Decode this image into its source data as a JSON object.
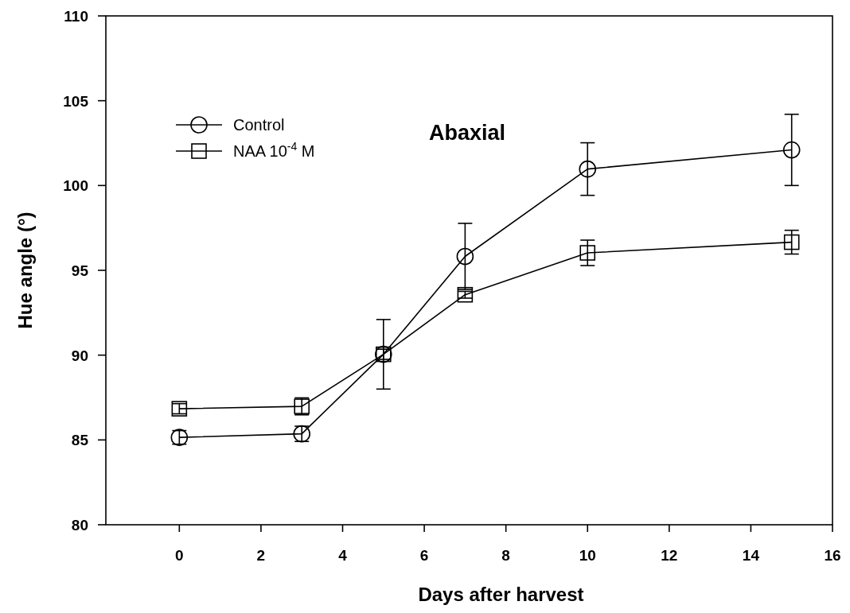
{
  "chart_data": {
    "type": "line",
    "title": "Abaxial",
    "xlabel": "Days after harvest",
    "ylabel": "Hue angle (°)",
    "x": [
      0,
      3,
      5,
      7,
      10,
      15
    ],
    "series": [
      {
        "name": "Control",
        "color": "#000000",
        "marker": "circle",
        "values": [
          85.15,
          85.36,
          90.05,
          95.82,
          100.97,
          102.1
        ],
        "errors": [
          0.4,
          0.45,
          2.05,
          1.95,
          1.55,
          2.1
        ]
      },
      {
        "name": "NAA 10$^{-4}$ M",
        "color": "#000000",
        "marker": "square",
        "values": [
          86.84,
          86.98,
          90.05,
          93.56,
          96.03,
          96.66
        ],
        "errors": [
          0.3,
          0.5,
          0.3,
          0.2,
          0.75,
          0.7
        ]
      }
    ],
    "xlim": [
      -1.8,
      16
    ],
    "xticks": [
      0,
      2,
      4,
      6,
      8,
      10,
      12,
      14,
      16
    ],
    "ylim": [
      80,
      110
    ],
    "yticks": [
      80,
      85,
      90,
      95,
      100,
      105,
      110
    ],
    "grid": false,
    "legend": "top left",
    "line_style": "solid"
  }
}
